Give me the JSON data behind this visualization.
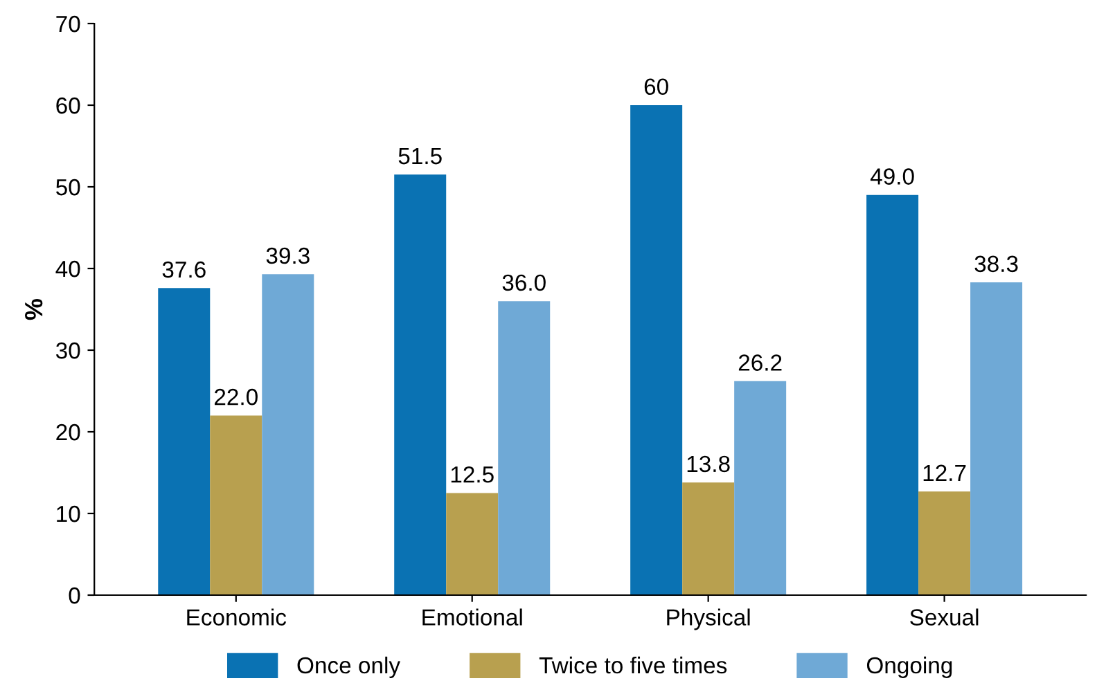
{
  "chart_data": {
    "type": "bar",
    "ylabel": "%",
    "categories": [
      "Economic",
      "Emotional",
      "Physical",
      "Sexual"
    ],
    "series": [
      {
        "name": "Once only",
        "color": "#0a72b3",
        "values": [
          37.6,
          51.5,
          60,
          49.0
        ],
        "value_labels": [
          "37.6",
          "51.5",
          "60",
          "49.0"
        ]
      },
      {
        "name": "Twice to five times",
        "color": "#b8a04f",
        "values": [
          22.0,
          12.5,
          13.8,
          12.7
        ],
        "value_labels": [
          "22.0",
          "12.5",
          "13.8",
          "12.7"
        ]
      },
      {
        "name": "Ongoing",
        "color": "#6fa9d6",
        "values": [
          39.3,
          36.0,
          26.2,
          38.3
        ],
        "value_labels": [
          "39.3",
          "36.0",
          "26.2",
          "38.3"
        ]
      }
    ],
    "ylim": [
      0,
      70
    ],
    "yticks": [
      0,
      10,
      20,
      30,
      40,
      50,
      60,
      70
    ],
    "grid": false,
    "legend": "bottom"
  }
}
